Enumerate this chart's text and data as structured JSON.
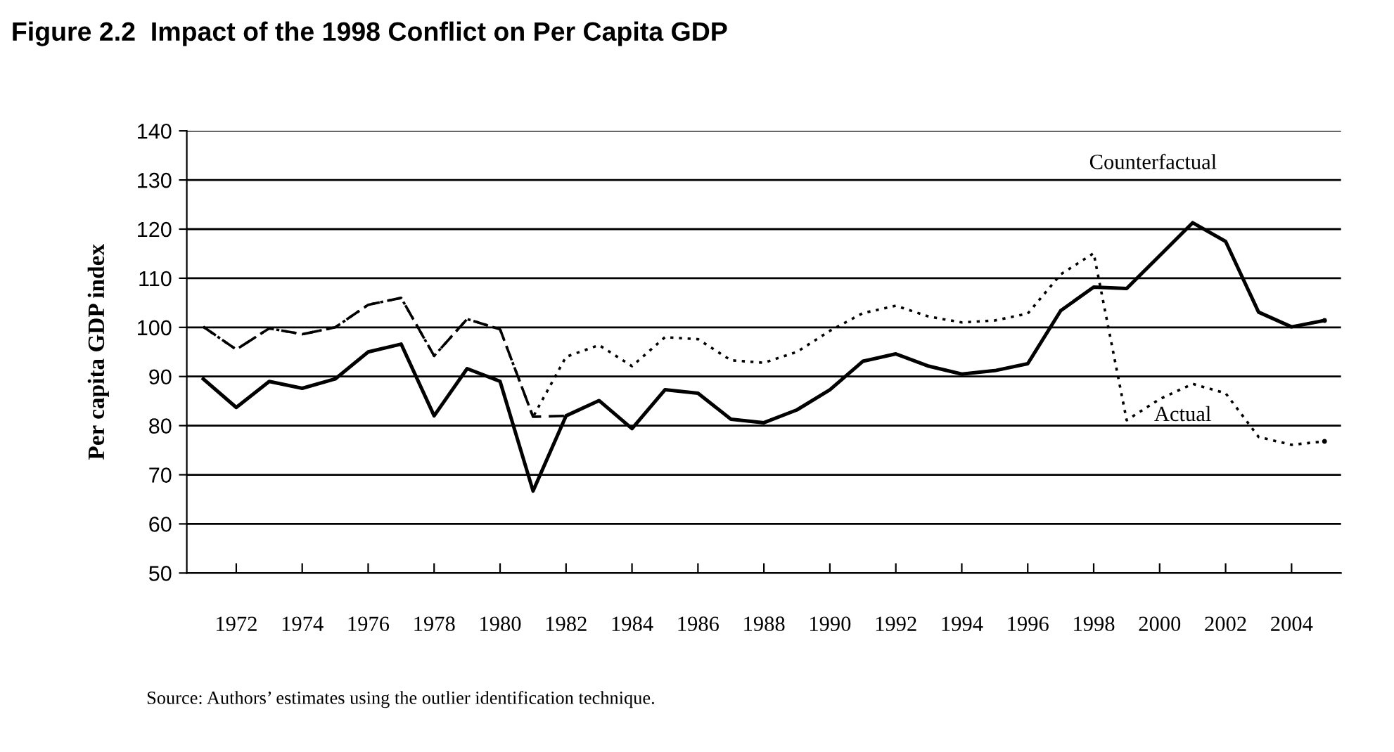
{
  "chart_data": {
    "type": "line",
    "title": "Figure 2.2  Impact of the 1998 Conflict on Per Capita GDP",
    "ylabel": "Per capita GDP index",
    "x": [
      1971,
      1972,
      1973,
      1974,
      1975,
      1976,
      1977,
      1978,
      1979,
      1980,
      1981,
      1982,
      1983,
      1984,
      1985,
      1986,
      1987,
      1988,
      1989,
      1990,
      1991,
      1992,
      1993,
      1994,
      1995,
      1996,
      1997,
      1998,
      1999,
      2000,
      2001,
      2002,
      2003,
      2004,
      2005
    ],
    "xlim": [
      1970.5,
      2005.5
    ],
    "xticks": [
      1972,
      1974,
      1976,
      1978,
      1980,
      1982,
      1984,
      1986,
      1988,
      1990,
      1992,
      1994,
      1996,
      1998,
      2000,
      2002,
      2004
    ],
    "ylim": [
      50,
      140
    ],
    "yticks": [
      50,
      60,
      70,
      80,
      90,
      100,
      110,
      120,
      130,
      140
    ],
    "grid": "y",
    "series": [
      {
        "name": "Counterfactual",
        "color": "#000000",
        "line_style": "solid",
        "values": [
          89.5,
          83.7,
          89.0,
          87.6,
          89.5,
          95.0,
          96.6,
          82.0,
          91.6,
          89.0,
          66.7,
          82.0,
          85.1,
          79.4,
          87.3,
          86.6,
          81.3,
          80.6,
          83.2,
          87.3,
          93.1,
          94.6,
          92.1,
          90.5,
          91.2,
          92.6,
          103.4,
          108.2,
          107.9,
          114.6,
          121.3,
          117.5,
          103.1,
          100.1,
          101.4
        ]
      },
      {
        "color": "#000000",
        "line_style": "dashed",
        "values": [
          100.1,
          95.5,
          99.8,
          98.6,
          100.0,
          104.6,
          106.0,
          94.2,
          101.7,
          99.6,
          81.8,
          82.0,
          85.1,
          79.4,
          87.3,
          86.6,
          81.3,
          80.6,
          83.2,
          87.3,
          93.1,
          94.6,
          92.1,
          90.5,
          91.2,
          92.6,
          103.4,
          108.2,
          107.9,
          114.6,
          121.3,
          117.5,
          103.1,
          100.1,
          101.4
        ]
      },
      {
        "name": "Actual",
        "color": "#000000",
        "line_style": "dotted",
        "values": [
          100.1,
          95.5,
          99.8,
          98.6,
          100.0,
          104.6,
          106.0,
          94.2,
          101.7,
          99.6,
          81.8,
          94.0,
          96.4,
          92.1,
          98.0,
          97.6,
          93.3,
          92.8,
          95.0,
          99.3,
          102.9,
          104.4,
          102.2,
          101.0,
          101.4,
          102.8,
          110.8,
          115.1,
          81.1,
          85.4,
          88.5,
          86.6,
          77.7,
          76.1,
          76.8
        ]
      }
    ],
    "annotations": [
      "Source: Authors’ estimates using the outlier identification technique."
    ]
  }
}
